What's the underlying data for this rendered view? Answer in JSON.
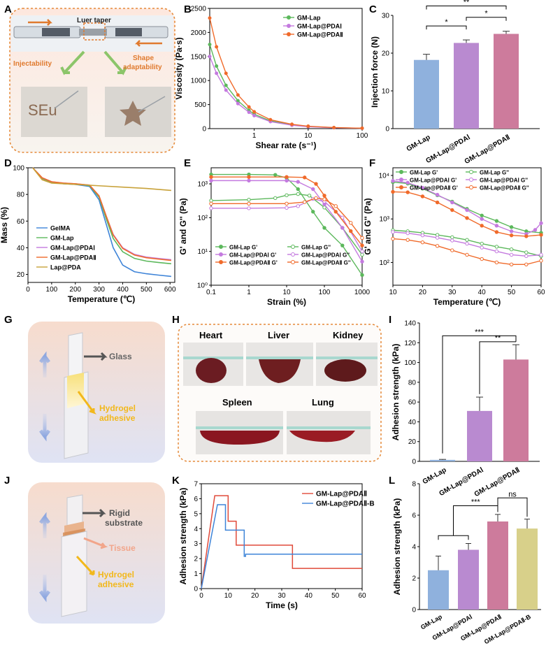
{
  "panel_letters": [
    "A",
    "B",
    "C",
    "D",
    "E",
    "F",
    "G",
    "H",
    "I",
    "J",
    "K",
    "L"
  ],
  "panel_a": {
    "label": "Luer taper",
    "left": "Injectability",
    "right": "Shape adaptability",
    "right_line1": "Shape",
    "right_line2": "adaptability",
    "written_text": "SEu",
    "colors": {
      "frame": "#e58a3a",
      "arrow": "#e07a2e",
      "green": "#8cc56a"
    }
  },
  "panel_g": {
    "glass": "Glass",
    "hydrogel_line1": "Hydrogel",
    "hydrogel_line2": "adhesive"
  },
  "panel_h": {
    "organs": [
      "Heart",
      "Liver",
      "Kidney",
      "Spleen",
      "Lung"
    ]
  },
  "panel_j": {
    "rigid_line1": "Rigid",
    "rigid_line2": "substrate",
    "tissue": "Tissue",
    "hydrogel_line1": "Hydrogel",
    "hydrogel_line2": "adhesive"
  },
  "colors": {
    "green": "#5cb85c",
    "purple": "#c47adf",
    "orange": "#f06a2a",
    "gold": "#c8a23a",
    "blue": "#3e84d8",
    "red": "#e04a3a",
    "bar_blue": "#8fb1dd",
    "bar_purple": "#b98ad0",
    "bar_pink": "#cd7b9c",
    "bar_khaki": "#d8d08a"
  },
  "chart_data": [
    {
      "id": "B",
      "type": "line",
      "xlabel": "Shear rate (s⁻¹)",
      "ylabel": "Viscosity (Pa·s)",
      "xscale": "log",
      "xlim": [
        0.1,
        100
      ],
      "ylim": [
        0,
        2500
      ],
      "xticks": [
        1,
        10,
        100
      ],
      "yticks": [
        0,
        500,
        1000,
        1500,
        2000,
        2500
      ],
      "legend": [
        "GM-Lap",
        "GM-Lap@PDAⅠ",
        "GM-Lap@PDAⅡ"
      ],
      "series": [
        {
          "name": "GM-Lap",
          "x": [
            0.15,
            0.2,
            0.3,
            0.5,
            0.8,
            1,
            2,
            5,
            10,
            30,
            100
          ],
          "y": [
            1750,
            1300,
            900,
            580,
            380,
            300,
            160,
            80,
            45,
            20,
            8
          ]
        },
        {
          "name": "GM-Lap@PDAⅠ",
          "x": [
            0.15,
            0.2,
            0.3,
            0.5,
            0.8,
            1,
            2,
            5,
            10,
            30,
            100
          ],
          "y": [
            1500,
            1150,
            800,
            520,
            340,
            270,
            145,
            70,
            40,
            18,
            7
          ]
        },
        {
          "name": "GM-Lap@PDAⅡ",
          "x": [
            0.15,
            0.2,
            0.3,
            0.5,
            0.8,
            1,
            2,
            5,
            10,
            30,
            100
          ],
          "y": [
            2300,
            1700,
            1150,
            700,
            450,
            350,
            185,
            90,
            50,
            22,
            9
          ]
        }
      ]
    },
    {
      "id": "C",
      "type": "bar",
      "ylabel": "Injection force (N)",
      "ylim": [
        0,
        30
      ],
      "yticks": [
        0,
        10,
        20,
        30
      ],
      "categories": [
        "GM-Lap",
        "GM-Lap@PDAⅠ",
        "GM-Lap@PDAⅡ"
      ],
      "values": [
        18.2,
        22.7,
        25.1
      ],
      "errors": [
        1.5,
        0.8,
        0.7
      ],
      "significance": [
        "*",
        "*",
        "**"
      ]
    },
    {
      "id": "D",
      "type": "line",
      "xlabel": "Temperature (℃)",
      "ylabel": "Mass (%)",
      "xlim": [
        0,
        620
      ],
      "ylim": [
        14,
        100
      ],
      "xticks": [
        0,
        100,
        200,
        300,
        400,
        500,
        600
      ],
      "yticks": [
        20,
        40,
        60,
        80,
        100
      ],
      "legend": [
        "GelMA",
        "GM-Lap",
        "GM-Lap@PDAⅠ",
        "GM-Lap@PDAⅡ",
        "Lap@PDA"
      ],
      "series": [
        {
          "name": "GelMA",
          "x": [
            20,
            60,
            100,
            150,
            200,
            260,
            300,
            330,
            360,
            400,
            450,
            500,
            550,
            605
          ],
          "y": [
            100,
            92,
            89,
            88,
            87.5,
            86,
            76,
            58,
            40,
            27,
            22,
            20.5,
            19.5,
            18.5
          ]
        },
        {
          "name": "GM-Lap",
          "x": [
            20,
            60,
            100,
            150,
            200,
            260,
            300,
            330,
            360,
            400,
            450,
            500,
            550,
            605
          ],
          "y": [
            100,
            92,
            89,
            88,
            88,
            86.5,
            78,
            62,
            47,
            37,
            32,
            30,
            29,
            28
          ]
        },
        {
          "name": "GM-Lap@PDAⅠ",
          "x": [
            20,
            60,
            100,
            150,
            200,
            260,
            300,
            330,
            360,
            400,
            450,
            500,
            550,
            605
          ],
          "y": [
            100,
            92.5,
            89.5,
            88.5,
            88,
            87,
            79,
            64,
            50,
            40,
            35,
            33,
            32,
            31
          ]
        },
        {
          "name": "GM-Lap@PDAⅡ",
          "x": [
            20,
            60,
            100,
            150,
            200,
            260,
            300,
            330,
            360,
            400,
            450,
            500,
            550,
            605
          ],
          "y": [
            100,
            92.5,
            89.5,
            88.5,
            88,
            87,
            79,
            64,
            49.5,
            39.5,
            34.5,
            32.5,
            31.5,
            30.5
          ]
        },
        {
          "name": "Lap@PDA",
          "x": [
            20,
            60,
            100,
            200,
            300,
            400,
            500,
            605
          ],
          "y": [
            100,
            91,
            88.5,
            87.5,
            86.5,
            85.5,
            84.5,
            83
          ]
        }
      ]
    },
    {
      "id": "E",
      "type": "line",
      "xlabel": "Strain (%)",
      "ylabel": "G' and G'' (Pa)",
      "xscale": "log",
      "yscale": "log",
      "xlim": [
        0.1,
        1000
      ],
      "ylim": [
        1,
        3000
      ],
      "xticks": [
        0.1,
        1,
        10,
        100,
        1000
      ],
      "yticks": [
        1,
        10,
        100,
        1000
      ],
      "legend": [
        "GM-Lap G'",
        "GM-Lap G''",
        "GM-Lap@PDAⅠ G'",
        "GM-Lap@PDAⅠ G''",
        "GM-Lap@PDAⅡ G'",
        "GM-Lap@PDAⅡ G''"
      ],
      "series": [
        {
          "name": "GM-Lap G'",
          "x": [
            0.1,
            1,
            5,
            10,
            20,
            50,
            100,
            300,
            1000
          ],
          "y": [
            1900,
            1900,
            1850,
            1500,
            700,
            150,
            50,
            15,
            2
          ]
        },
        {
          "name": "GM-Lap G''",
          "x": [
            0.1,
            1,
            5,
            10,
            20,
            40,
            100,
            300,
            1000
          ],
          "y": [
            320,
            340,
            380,
            460,
            500,
            450,
            200,
            50,
            8
          ]
        },
        {
          "name": "GM-Lap@PDAⅠ G'",
          "x": [
            0.1,
            1,
            10,
            20,
            50,
            100,
            300,
            1000
          ],
          "y": [
            1250,
            1250,
            1250,
            1150,
            700,
            250,
            50,
            5
          ]
        },
        {
          "name": "GM-Lap@PDAⅠ G''",
          "x": [
            0.1,
            1,
            10,
            20,
            50,
            100,
            300,
            1000
          ],
          "y": [
            190,
            190,
            195,
            220,
            360,
            300,
            100,
            10
          ]
        },
        {
          "name": "GM-Lap@PDAⅡ G'",
          "x": [
            0.1,
            1,
            10,
            30,
            60,
            100,
            200,
            500,
            1000
          ],
          "y": [
            1600,
            1600,
            1600,
            1550,
            1000,
            450,
            150,
            40,
            15
          ]
        },
        {
          "name": "GM-Lap@PDAⅡ G''",
          "x": [
            0.1,
            1,
            10,
            30,
            60,
            100,
            200,
            500,
            1000
          ],
          "y": [
            260,
            260,
            260,
            290,
            380,
            350,
            220,
            70,
            25
          ]
        }
      ]
    },
    {
      "id": "F",
      "type": "line",
      "xlabel": "Temperature (℃)",
      "ylabel": "G' and G'' (Pa)",
      "yscale": "log",
      "xlim": [
        10,
        60
      ],
      "ylim": [
        30,
        15000
      ],
      "xticks": [
        10,
        20,
        30,
        40,
        50,
        60
      ],
      "yticks": [
        100,
        1000,
        10000
      ],
      "legend": [
        "GM-Lap G'",
        "GM-Lap G''",
        "GM-Lap@PDAⅠ G'",
        "GM-Lap@PDAⅠ G''",
        "GM-Lap@PDAⅡ G'",
        "GM-Lap@PDAⅡ G''"
      ],
      "series": [
        {
          "name": "GM-Lap G'",
          "x": [
            10,
            15,
            20,
            25,
            30,
            35,
            40,
            45,
            50,
            55,
            60
          ],
          "y": [
            7000,
            6500,
            5000,
            3500,
            2500,
            1700,
            1200,
            900,
            650,
            520,
            480
          ]
        },
        {
          "name": "GM-Lap G''",
          "x": [
            10,
            15,
            20,
            25,
            30,
            35,
            40,
            45,
            50,
            55,
            60
          ],
          "y": [
            550,
            520,
            480,
            430,
            380,
            330,
            270,
            230,
            200,
            170,
            140
          ]
        },
        {
          "name": "GM-Lap@PDAⅠ G'",
          "x": [
            10,
            15,
            20,
            25,
            30,
            35,
            40,
            45,
            50,
            55,
            58,
            60
          ],
          "y": [
            7500,
            6800,
            5200,
            3600,
            2400,
            1600,
            1000,
            700,
            520,
            450,
            560,
            800
          ]
        },
        {
          "name": "GM-Lap@PDAⅠ G''",
          "x": [
            10,
            15,
            20,
            25,
            30,
            35,
            40,
            45,
            50,
            55,
            60
          ],
          "y": [
            500,
            470,
            420,
            370,
            320,
            270,
            220,
            180,
            150,
            140,
            150
          ]
        },
        {
          "name": "GM-Lap@PDAⅡ G'",
          "x": [
            10,
            15,
            20,
            25,
            30,
            35,
            40,
            45,
            50,
            55,
            60
          ],
          "y": [
            4200,
            4100,
            3300,
            2400,
            1600,
            1050,
            700,
            500,
            420,
            400,
            430
          ]
        },
        {
          "name": "GM-Lap@PDAⅡ G''",
          "x": [
            10,
            15,
            20,
            25,
            30,
            35,
            40,
            45,
            50,
            55,
            60
          ],
          "y": [
            350,
            330,
            290,
            240,
            190,
            150,
            120,
            100,
            90,
            90,
            110
          ]
        }
      ]
    },
    {
      "id": "I",
      "type": "bar",
      "ylabel": "Adhesion strength (kPa)",
      "ylim": [
        0,
        140
      ],
      "yticks": [
        0,
        20,
        40,
        60,
        80,
        100,
        120,
        140
      ],
      "categories": [
        "GM-Lap",
        "GM-Lap@PDAⅠ",
        "GM-Lap@PDAⅡ"
      ],
      "values": [
        1.5,
        51,
        103
      ],
      "errors": [
        0.5,
        14,
        15
      ],
      "significance": [
        "***",
        "**"
      ]
    },
    {
      "id": "K",
      "type": "line",
      "xlabel": "Time (s)",
      "ylabel": "Adhesion strength (kPa)",
      "xlim": [
        0,
        60
      ],
      "ylim": [
        0,
        7
      ],
      "xticks": [
        0,
        10,
        20,
        30,
        40,
        50,
        60
      ],
      "yticks": [
        0,
        1,
        2,
        3,
        4,
        5,
        6,
        7
      ],
      "legend": [
        "GM-Lap@PDAⅡ",
        "GM-Lap@PDAⅡ-B"
      ],
      "series": [
        {
          "name": "GM-Lap@PDAⅡ",
          "x": [
            0,
            5,
            10,
            10,
            13,
            13,
            14,
            14,
            34,
            34,
            60
          ],
          "y": [
            0,
            6.2,
            6.2,
            4.5,
            4.5,
            2.9,
            2.9,
            2.9,
            2.9,
            1.35,
            1.35
          ]
        },
        {
          "name": "GM-Lap@PDAⅡ-B",
          "x": [
            0,
            6,
            9,
            9,
            16,
            16,
            16.5,
            16.5,
            60
          ],
          "y": [
            0,
            5.6,
            5.6,
            3.9,
            3.9,
            2.15,
            2.15,
            2.3,
            2.3
          ]
        }
      ]
    },
    {
      "id": "L",
      "type": "bar",
      "ylabel": "Adhesion strength (kPa)",
      "ylim": [
        0,
        8
      ],
      "yticks": [
        0,
        2,
        4,
        6,
        8
      ],
      "categories": [
        "GM-Lap",
        "GM-Lap@PDAⅠ",
        "GM-Lap@PDAⅡ",
        "GM-Lap@PDAⅡ-B"
      ],
      "values": [
        2.5,
        3.8,
        5.6,
        5.15
      ],
      "errors": [
        0.9,
        0.4,
        0.45,
        0.6
      ],
      "significance": [
        "***",
        "ns"
      ]
    }
  ]
}
